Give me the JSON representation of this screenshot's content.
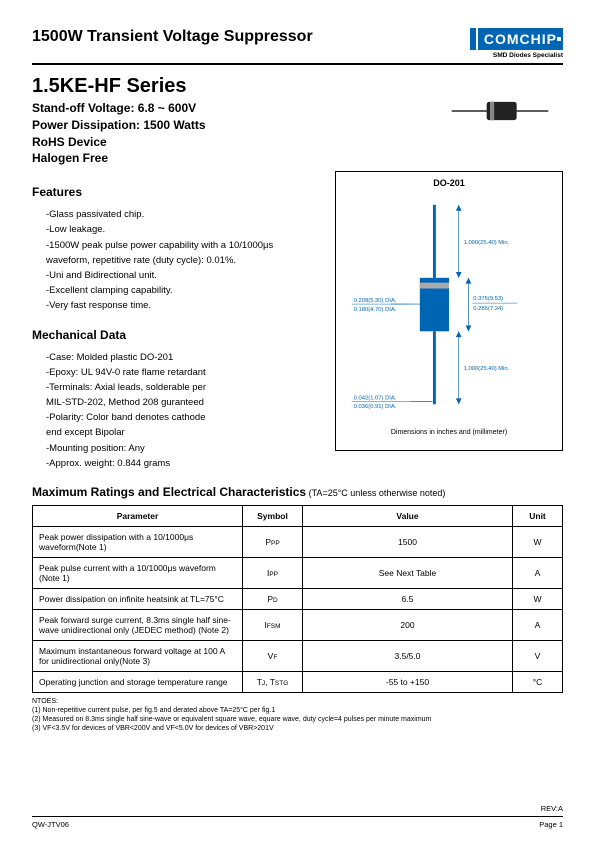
{
  "header": {
    "title": "1500W Transient Voltage Suppressor",
    "logo_text": "COMCHIP",
    "logo_bg": "#0066b3",
    "logo_sub": "SMD Diodes Specialist"
  },
  "series": {
    "title": "1.5KE-HF Series",
    "lines": [
      "Stand-off Voltage: 6.8 ~ 600V",
      "Power Dissipation: 1500 Watts",
      "RoHS Device",
      "Halogen Free"
    ]
  },
  "features": {
    "title": "Features",
    "items": [
      "-Glass passivated chip.",
      "-Low leakage.",
      "-1500W peak pulse power capability with a 10/1000μs",
      " waveform, repetitive rate (duty cycle): 0.01%.",
      "-Uni and Bidirectional unit.",
      "-Excellent clamping capability.",
      "-Very fast response time."
    ]
  },
  "mechanical": {
    "title": "Mechanical Data",
    "items": [
      "-Case: Molded plastic DO-201",
      "-Epoxy: UL 94V-0 rate flame retardant",
      "-Terminals: Axial leads, solderable per",
      " MIL-STD-202, Method 208 guranteed",
      "-Polarity: Color band denotes cathode",
      " end except Bipolar",
      "-Mounting position: Any",
      "-Approx. weight: 0.844 grams"
    ]
  },
  "package": {
    "title": "DO-201",
    "footer": "Dimensions in inches and (millimeter)",
    "labels": {
      "lead_top": "1.000(25.40) Min.",
      "body_h1": "0.375(9.53)",
      "body_h2": "0.285(7.24)",
      "body_w1": "0.209(5.30) DIA.",
      "body_w2": "0.180(4.70) DIA.",
      "lead_bot": "1.000(25.40) Min.",
      "wire_w1": "0.042(1.07) DIA.",
      "wire_w2": "0.036(0.91) DIA."
    },
    "colors": {
      "lead": "#0066b3",
      "body": "#0066b3",
      "band": "#888888",
      "text": "#0066b3"
    }
  },
  "ratings": {
    "title": "Maximum Ratings and Electrical Characteristics",
    "cond": " (TA=25°C unless otherwise noted)",
    "columns": [
      "Parameter",
      "Symbol",
      "Value",
      "Unit"
    ],
    "rows": [
      [
        "Peak power dissipation with a 10/1000μs waveform(Note 1)",
        "PPP",
        "1500",
        "W"
      ],
      [
        "Peak pulse current  with a 10/1000μs waveform (Note 1)",
        "IPP",
        "See Next Table",
        "A"
      ],
      [
        "Power dissipation on infinite heatsink at TL=75°C",
        "PD",
        "6.5",
        "W"
      ],
      [
        "Peak forward surge current, 8.3ms single half sine-wave unidirectional only (JEDEC method) (Note 2)",
        "IFSM",
        "200",
        "A"
      ],
      [
        "Maximum instantaneous forward voltage at 100 A for unidirectional only(Note 3)",
        "VF",
        "3.5/5.0",
        "V"
      ],
      [
        "Operating junction and storage temperature range",
        "TJ, TSTG",
        "-55 to +150",
        "°C"
      ]
    ]
  },
  "notes": {
    "head": "NTOES:",
    "items": [
      "(1) Non-repetitive current pulse, per fig.5 and derated above TA=25°C per fig.1",
      "(2) Measured on 8.3ms single half sine-wave or equivalent square wave, equare wave, duty cycle=4 pulses per minute maximum",
      "(3) VF<3.5V for devices of VBR<200V and VF<5.0V for devices of VBR>201V"
    ]
  },
  "footer": {
    "rev": "REV:A",
    "left": "QW-JTV06",
    "right": "Page 1"
  }
}
